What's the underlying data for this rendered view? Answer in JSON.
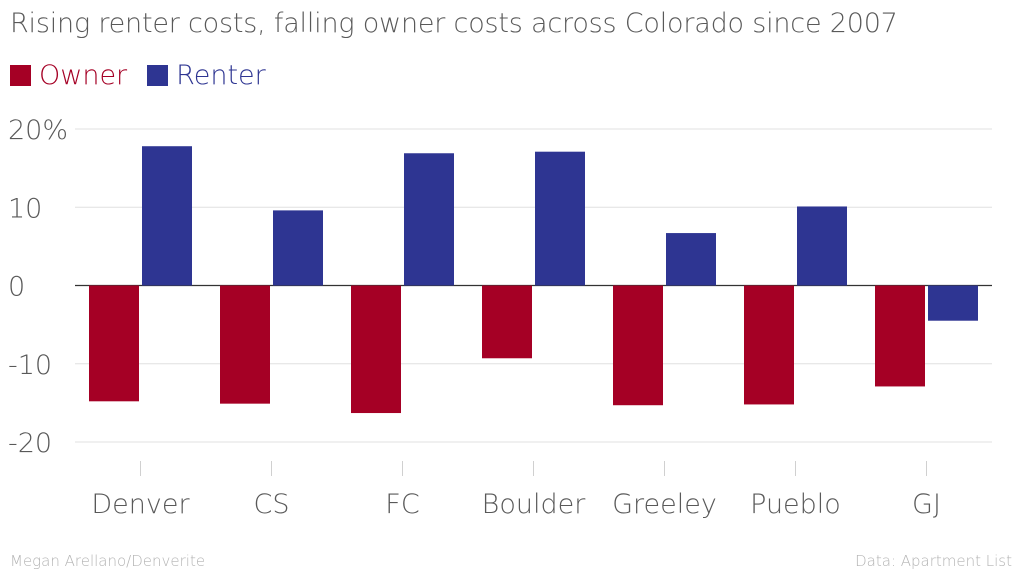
{
  "chart_data": {
    "type": "bar",
    "title": "Rising renter costs, falling owner costs across Colorado since 2007",
    "categories": [
      "Denver",
      "CS",
      "FC",
      "Boulder",
      "Greeley",
      "Pueblo",
      "GJ"
    ],
    "series": [
      {
        "name": "Owner",
        "color": "#a50025",
        "values": [
          -14.8,
          -15.1,
          -16.3,
          -9.3,
          -15.3,
          -15.2,
          -12.9
        ]
      },
      {
        "name": "Renter",
        "color": "#2e3592",
        "values": [
          17.8,
          9.6,
          16.9,
          17.1,
          6.7,
          10.1,
          -4.5
        ]
      }
    ],
    "ylim": [
      -20,
      20
    ],
    "yticks": [
      20,
      10,
      0,
      -10,
      -20
    ],
    "ytick_labels": [
      "20%",
      "10",
      "0",
      "-10",
      "-20"
    ],
    "xlabel": "",
    "ylabel": "",
    "legend_position": "top-left"
  },
  "footer": {
    "credit": "Megan Arellano/Denverite",
    "source": "Data: Apartment List"
  }
}
